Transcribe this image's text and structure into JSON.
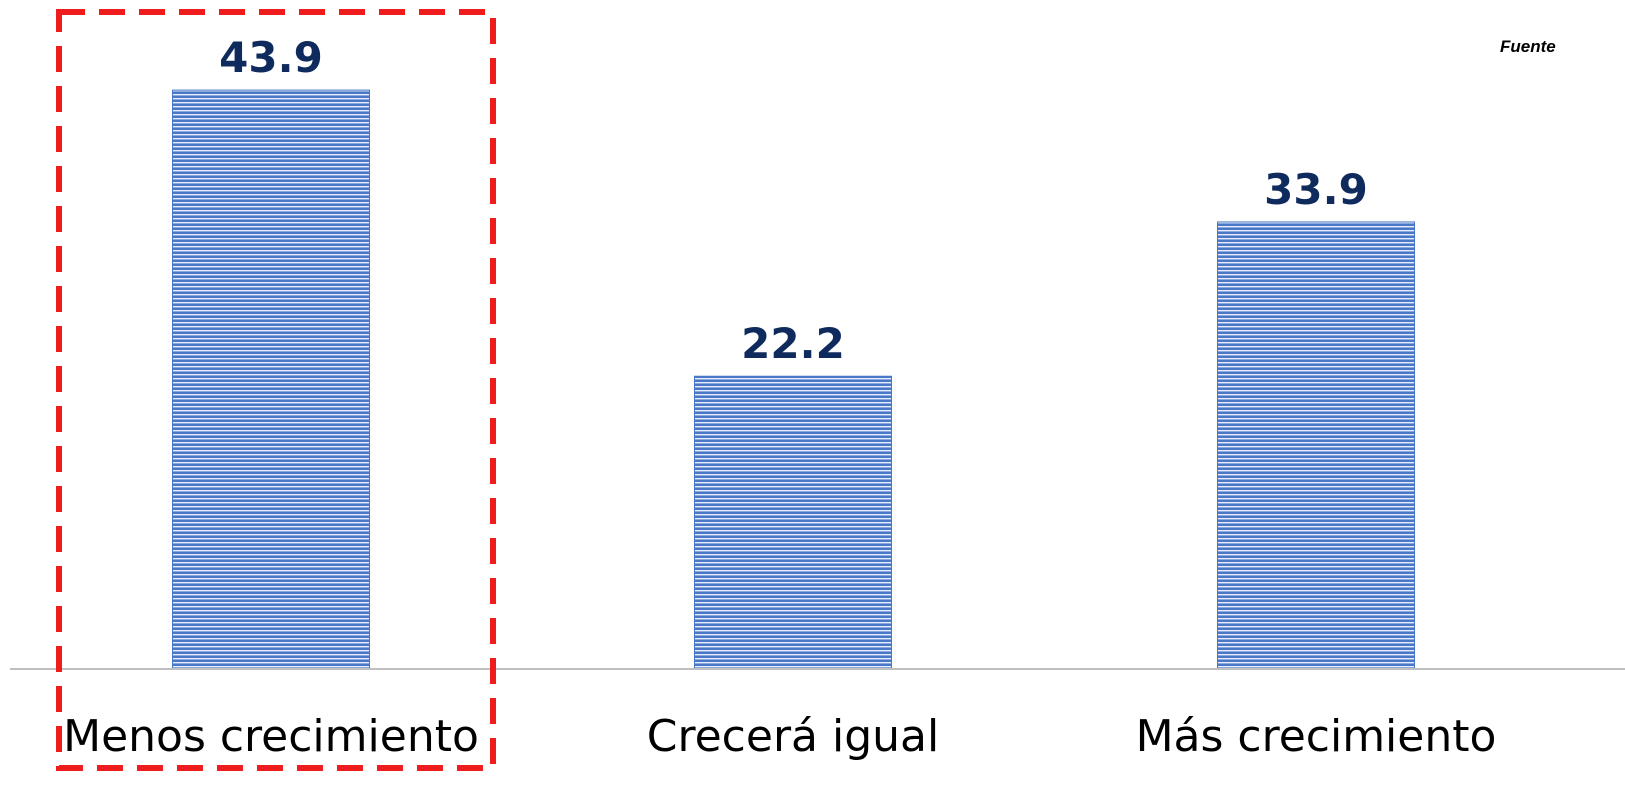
{
  "source_note": "Fuente",
  "chart_data": {
    "type": "bar",
    "categories": [
      "Menos crecimiento",
      "Crecerá igual",
      "Más crecimiento"
    ],
    "values": [
      43.9,
      22.2,
      33.9
    ],
    "data_labels": [
      "43.9",
      "22.2",
      "33.9"
    ],
    "title": "",
    "xlabel": "",
    "ylabel": "",
    "ylim": [
      0,
      48
    ],
    "grid": false,
    "legend": "none",
    "highlighted_category": "Menos crecimiento",
    "colors": {
      "bar_fill": "#4a78c9",
      "bar_stripe": "#e8eefb",
      "data_label": "#0f2a5c",
      "category_label": "#000000",
      "axis_line": "#bfbfbf",
      "highlight_border": "#ee1c1c"
    }
  }
}
